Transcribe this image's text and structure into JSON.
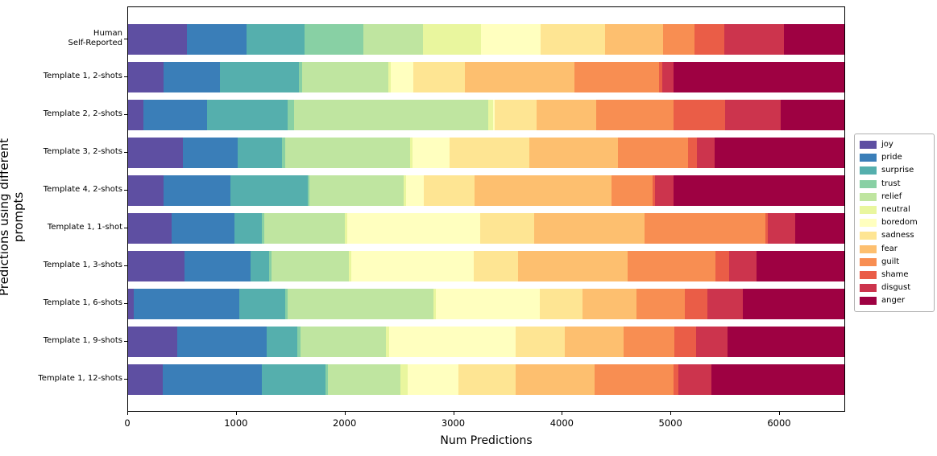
{
  "chart_data": {
    "type": "stacked_bar_horizontal",
    "title": "",
    "xlabel": "Num Predictions",
    "ylabel": "Predictions using different prompts",
    "xlim": [
      0,
      6610
    ],
    "x_ticks": [
      0,
      1000,
      2000,
      3000,
      4000,
      5000,
      6000
    ],
    "grid": false,
    "legend_position": "center-right",
    "categories": [
      "Human\nSelf-Reported",
      "Template 1, 2-shots",
      "Template 2, 2-shots",
      "Template 3, 2-shots",
      "Template 4, 2-shots",
      "Template 1, 1-shot",
      "Template 1, 3-shots",
      "Template 1, 6-shots",
      "Template 1, 9-shots",
      "Template 1, 12-shots"
    ],
    "series": [
      {
        "name": "joy",
        "color": "#5e4fa2",
        "values": [
          540,
          325,
          145,
          510,
          325,
          405,
          520,
          50,
          455,
          320
        ]
      },
      {
        "name": "pride",
        "color": "#3a7eb8",
        "values": [
          550,
          525,
          590,
          505,
          625,
          575,
          615,
          980,
          825,
          920
        ]
      },
      {
        "name": "surprise",
        "color": "#55afad",
        "values": [
          540,
          735,
          745,
          410,
          710,
          255,
          170,
          425,
          285,
          585
        ]
      },
      {
        "name": "trust",
        "color": "#88d0a4",
        "values": [
          540,
          30,
          60,
          30,
          20,
          20,
          20,
          20,
          30,
          25
        ]
      },
      {
        "name": "relief",
        "color": "#bfe5a0",
        "values": [
          550,
          795,
          1795,
          1160,
          870,
          745,
          720,
          1355,
          795,
          670
        ]
      },
      {
        "name": "neutral",
        "color": "#e9f69e",
        "values": [
          540,
          20,
          45,
          20,
          20,
          20,
          20,
          20,
          30,
          65
        ]
      },
      {
        "name": "boredom",
        "color": "#ffffbf",
        "values": [
          545,
          215,
          20,
          340,
          170,
          1230,
          1140,
          960,
          1165,
          470
        ]
      },
      {
        "name": "sadness",
        "color": "#fee593",
        "values": [
          600,
          475,
          385,
          745,
          470,
          495,
          410,
          395,
          460,
          535
        ]
      },
      {
        "name": "fear",
        "color": "#fdbf6f",
        "values": [
          530,
          1015,
          555,
          815,
          1265,
          1020,
          1010,
          500,
          545,
          730
        ]
      },
      {
        "name": "guilt",
        "color": "#f88e52",
        "values": [
          295,
          785,
          715,
          655,
          380,
          1115,
          815,
          445,
          470,
          730
        ]
      },
      {
        "name": "shame",
        "color": "#ea5d47",
        "values": [
          270,
          30,
          480,
          80,
          20,
          20,
          130,
          215,
          200,
          40
        ]
      },
      {
        "name": "disgust",
        "color": "#cc344d",
        "values": [
          550,
          105,
          515,
          165,
          175,
          255,
          250,
          325,
          285,
          310
        ]
      },
      {
        "name": "anger",
        "color": "#9e0142",
        "values": [
          560,
          1580,
          590,
          1200,
          1580,
          455,
          815,
          940,
          1085,
          1230
        ]
      }
    ]
  }
}
